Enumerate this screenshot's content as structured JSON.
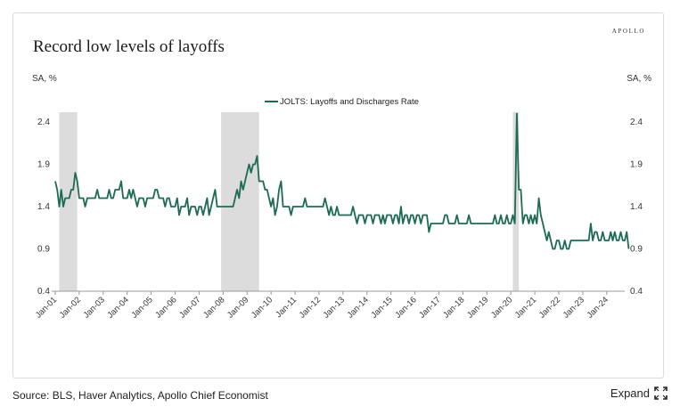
{
  "brand": "APOLLO",
  "title": "Record low levels of layoffs",
  "units": {
    "left": "SA, %",
    "right": "SA, %"
  },
  "source": "Source: BLS, Haver Analytics, Apollo Chief Economist",
  "expand_label": "Expand",
  "icons": {
    "expand": "expand-arrows-icon"
  },
  "colors": {
    "line": "#1d6b55",
    "recession": "#dcdcdc",
    "axis": "#999999"
  },
  "chart_data": {
    "type": "line",
    "title": "Record low levels of layoffs",
    "ylabel_left": "SA, %",
    "ylabel_right": "SA, %",
    "ylim": [
      0.4,
      2.4
    ],
    "yticks": [
      "0.4",
      "0.9",
      "1.4",
      "1.9",
      "2.4"
    ],
    "xticks": [
      "Jan-01",
      "Jan-02",
      "Jan-03",
      "Jan-04",
      "Jan-05",
      "Jan-06",
      "Jan-07",
      "Jan-08",
      "Jan-09",
      "Jan-10",
      "Jan-11",
      "Jan-12",
      "Jan-13",
      "Jan-14",
      "Jan-15",
      "Jan-16",
      "Jan-17",
      "Jan-18",
      "Jan-19",
      "Jan-20",
      "Jan-21",
      "Jan-22",
      "Jan-23",
      "Jan-24"
    ],
    "legend": "top-center",
    "recessions": [
      {
        "start": "2001-03",
        "end": "2001-11"
      },
      {
        "start": "2007-12",
        "end": "2009-06"
      },
      {
        "start": "2020-02",
        "end": "2020-04"
      }
    ],
    "series": [
      {
        "name": "JOLTS: Layoffs and Discharges Rate",
        "start": "2001-01",
        "values": [
          1.7,
          1.6,
          1.4,
          1.6,
          1.4,
          1.5,
          1.5,
          1.5,
          1.6,
          1.6,
          1.8,
          1.7,
          1.5,
          1.5,
          1.5,
          1.4,
          1.5,
          1.5,
          1.5,
          1.5,
          1.5,
          1.6,
          1.5,
          1.5,
          1.5,
          1.5,
          1.5,
          1.6,
          1.5,
          1.5,
          1.6,
          1.6,
          1.6,
          1.7,
          1.5,
          1.5,
          1.5,
          1.6,
          1.5,
          1.6,
          1.5,
          1.4,
          1.5,
          1.5,
          1.5,
          1.4,
          1.5,
          1.5,
          1.5,
          1.5,
          1.6,
          1.6,
          1.5,
          1.5,
          1.5,
          1.4,
          1.5,
          1.5,
          1.4,
          1.4,
          1.4,
          1.5,
          1.3,
          1.4,
          1.4,
          1.4,
          1.5,
          1.3,
          1.4,
          1.4,
          1.4,
          1.3,
          1.4,
          1.4,
          1.3,
          1.4,
          1.5,
          1.3,
          1.4,
          1.5,
          1.6,
          1.4,
          1.4,
          1.4,
          1.4,
          1.4,
          1.4,
          1.4,
          1.4,
          1.4,
          1.5,
          1.6,
          1.5,
          1.7,
          1.6,
          1.7,
          1.8,
          1.9,
          1.8,
          1.9,
          1.9,
          2.0,
          1.7,
          1.7,
          1.7,
          1.6,
          1.6,
          1.5,
          1.4,
          1.5,
          1.3,
          1.4,
          1.6,
          1.7,
          1.4,
          1.4,
          1.4,
          1.4,
          1.3,
          1.4,
          1.4,
          1.4,
          1.4,
          1.4,
          1.4,
          1.5,
          1.4,
          1.4,
          1.4,
          1.4,
          1.4,
          1.4,
          1.4,
          1.4,
          1.4,
          1.5,
          1.4,
          1.3,
          1.4,
          1.3,
          1.3,
          1.4,
          1.3,
          1.3,
          1.3,
          1.3,
          1.3,
          1.3,
          1.3,
          1.4,
          1.3,
          1.2,
          1.3,
          1.3,
          1.3,
          1.2,
          1.3,
          1.3,
          1.3,
          1.2,
          1.3,
          1.3,
          1.3,
          1.2,
          1.3,
          1.2,
          1.3,
          1.3,
          1.3,
          1.2,
          1.3,
          1.3,
          1.2,
          1.4,
          1.2,
          1.3,
          1.3,
          1.2,
          1.3,
          1.3,
          1.2,
          1.3,
          1.3,
          1.2,
          1.3,
          1.3,
          1.3,
          1.1,
          1.2,
          1.2,
          1.2,
          1.2,
          1.2,
          1.2,
          1.2,
          1.3,
          1.3,
          1.2,
          1.2,
          1.2,
          1.2,
          1.3,
          1.2,
          1.2,
          1.2,
          1.2,
          1.2,
          1.3,
          1.2,
          1.2,
          1.2,
          1.2,
          1.2,
          1.2,
          1.2,
          1.2,
          1.2,
          1.2,
          1.2,
          1.2,
          1.3,
          1.2,
          1.2,
          1.3,
          1.2,
          1.2,
          1.3,
          1.2,
          1.2,
          1.3,
          1.2,
          2.5,
          1.6,
          1.6,
          1.2,
          1.3,
          1.3,
          1.2,
          1.3,
          1.2,
          1.3,
          1.2,
          1.5,
          1.3,
          1.2,
          1.1,
          1.0,
          1.1,
          1.0,
          0.9,
          0.9,
          1.0,
          1.0,
          0.9,
          0.9,
          1.0,
          0.9,
          0.9,
          1.0,
          1.0,
          1.0,
          1.0,
          1.0,
          1.0,
          1.0,
          1.0,
          1.0,
          1.0,
          1.2,
          1.0,
          1.1,
          1.1,
          1.0,
          1.0,
          1.1,
          1.0,
          1.0,
          1.0,
          1.1,
          1.0,
          1.1,
          1.0,
          1.0,
          1.1,
          1.0,
          1.0,
          1.1,
          0.9
        ]
      }
    ]
  }
}
